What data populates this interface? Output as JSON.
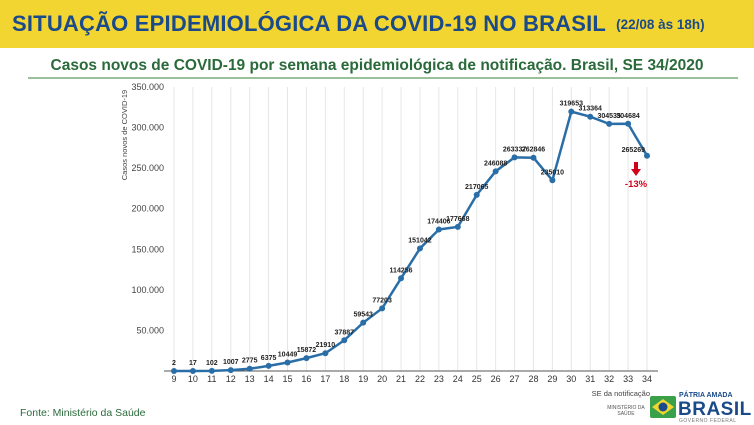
{
  "header": {
    "title": "SITUAÇÃO EPIDEMIOLÓGICA DA COVID-19 NO BRASIL",
    "date": "(22/08 às 18h)"
  },
  "subtitle": "Casos novos de COVID-19 por semana epidemiológica de notificação. Brasil, SE 34/2020",
  "source": "Fonte: Ministério da Saúde",
  "colors": {
    "header_bg": "#f3d532",
    "header_text": "#1a4a8a",
    "subtitle_text": "#2a6a3a",
    "line": "#2a6ea8",
    "decrease": "#d0021b"
  },
  "chart_data": {
    "type": "line",
    "xlabel": "SE da notificação",
    "ylabel": "Casos novos de COVID-19",
    "ylim": [
      0,
      350000
    ],
    "yticks": [
      0,
      50000,
      100000,
      150000,
      200000,
      250000,
      300000,
      350000
    ],
    "ytick_labels": [
      "",
      "50.000",
      "100.000",
      "150.000",
      "200.000",
      "250.000",
      "300.000",
      "350.000"
    ],
    "grid": "vertical",
    "categories": [
      "9",
      "10",
      "11",
      "12",
      "13",
      "14",
      "15",
      "16",
      "17",
      "18",
      "19",
      "20",
      "21",
      "22",
      "23",
      "24",
      "25",
      "26",
      "27",
      "28",
      "29",
      "30",
      "31",
      "32",
      "33",
      "34"
    ],
    "values": [
      2,
      17,
      102,
      1007,
      2775,
      6375,
      10449,
      15872,
      21910,
      37887,
      59543,
      77203,
      114256,
      151042,
      174406,
      177668,
      217065,
      246088,
      263337,
      262846,
      235010,
      319653,
      313364,
      304535,
      304684,
      265269
    ],
    "annotation": {
      "label": "-13%",
      "at": "34"
    }
  },
  "logos": {
    "ministry": "MINISTÉRIO DA SAÚDE",
    "brand_top": "PÁTRIA AMADA",
    "brand_main": "BRASIL",
    "brand_sub": "GOVERNO FEDERAL"
  }
}
